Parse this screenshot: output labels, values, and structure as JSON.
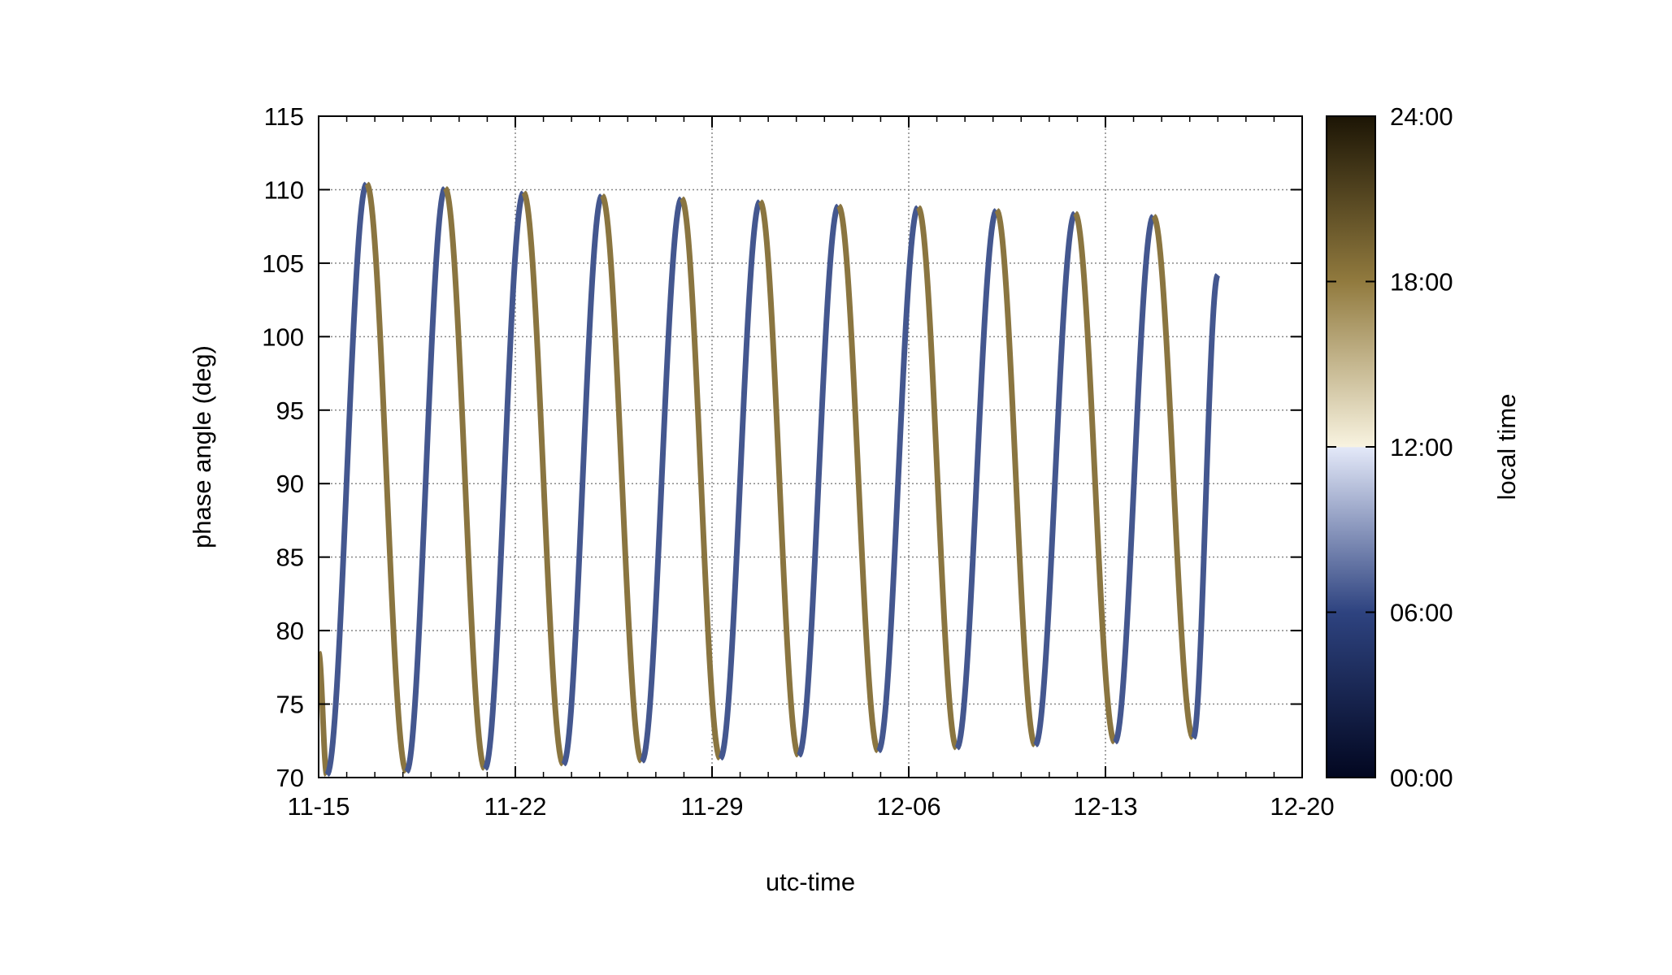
{
  "chart_data": {
    "type": "line",
    "title": "",
    "xlabel": "utc-time",
    "ylabel": "phase angle (deg)",
    "colorbar_label": "local time",
    "x_axis": {
      "type": "date",
      "range": [
        "11-15",
        "12-20"
      ],
      "tick_labels": [
        "11-15",
        "11-22",
        "11-29",
        "12-06",
        "12-13",
        "12-20"
      ]
    },
    "y_axis": {
      "range": [
        70,
        115
      ],
      "tick_labels": [
        "70",
        "75",
        "80",
        "85",
        "90",
        "95",
        "100",
        "105",
        "110",
        "115"
      ]
    },
    "colorbar": {
      "range": [
        "00:00",
        "24:00"
      ],
      "tick_labels": [
        "00:00",
        "06:00",
        "12:00",
        "18:00",
        "24:00"
      ],
      "colors": {
        "00:00": "#020720",
        "06:00": "#2e4380",
        "11:59": "#e3e8f8",
        "12:00": "#f8f3e0",
        "18:00": "#917a3e",
        "24:00": "#1c1505"
      }
    },
    "grid": true,
    "legend": "none",
    "series_colors": {
      "rising": "#44578f",
      "falling": "#8a7540"
    },
    "series": [
      {
        "points": [
          {
            "x": "11-15 00:00",
            "y": 78.5
          },
          {
            "x": "11-15 07:00",
            "y": 70.2
          },
          {
            "x": "11-16 17:00",
            "y": 110.4
          },
          {
            "x": "11-18 03:00",
            "y": 70.4
          },
          {
            "x": "11-19 12:00",
            "y": 110.1
          },
          {
            "x": "11-20 22:00",
            "y": 70.6
          },
          {
            "x": "11-22 07:00",
            "y": 109.8
          },
          {
            "x": "11-23 17:00",
            "y": 70.9
          },
          {
            "x": "11-25 02:00",
            "y": 109.6
          },
          {
            "x": "11-26 12:00",
            "y": 71.1
          },
          {
            "x": "11-27 22:00",
            "y": 109.4
          },
          {
            "x": "11-29 07:00",
            "y": 71.3
          },
          {
            "x": "11-30 17:00",
            "y": 109.2
          },
          {
            "x": "12-02 02:00",
            "y": 71.5
          },
          {
            "x": "12-03 12:00",
            "y": 108.9
          },
          {
            "x": "12-04 22:00",
            "y": 71.8
          },
          {
            "x": "12-06 08:00",
            "y": 108.8
          },
          {
            "x": "12-07 17:00",
            "y": 72.0
          },
          {
            "x": "12-09 03:00",
            "y": 108.6
          },
          {
            "x": "12-10 12:00",
            "y": 72.2
          },
          {
            "x": "12-11 22:00",
            "y": 108.4
          },
          {
            "x": "12-13 08:00",
            "y": 72.4
          },
          {
            "x": "12-14 17:00",
            "y": 108.2
          },
          {
            "x": "12-16 03:00",
            "y": 72.7
          },
          {
            "x": "12-17 00:00",
            "y": 104.2
          }
        ]
      }
    ]
  }
}
